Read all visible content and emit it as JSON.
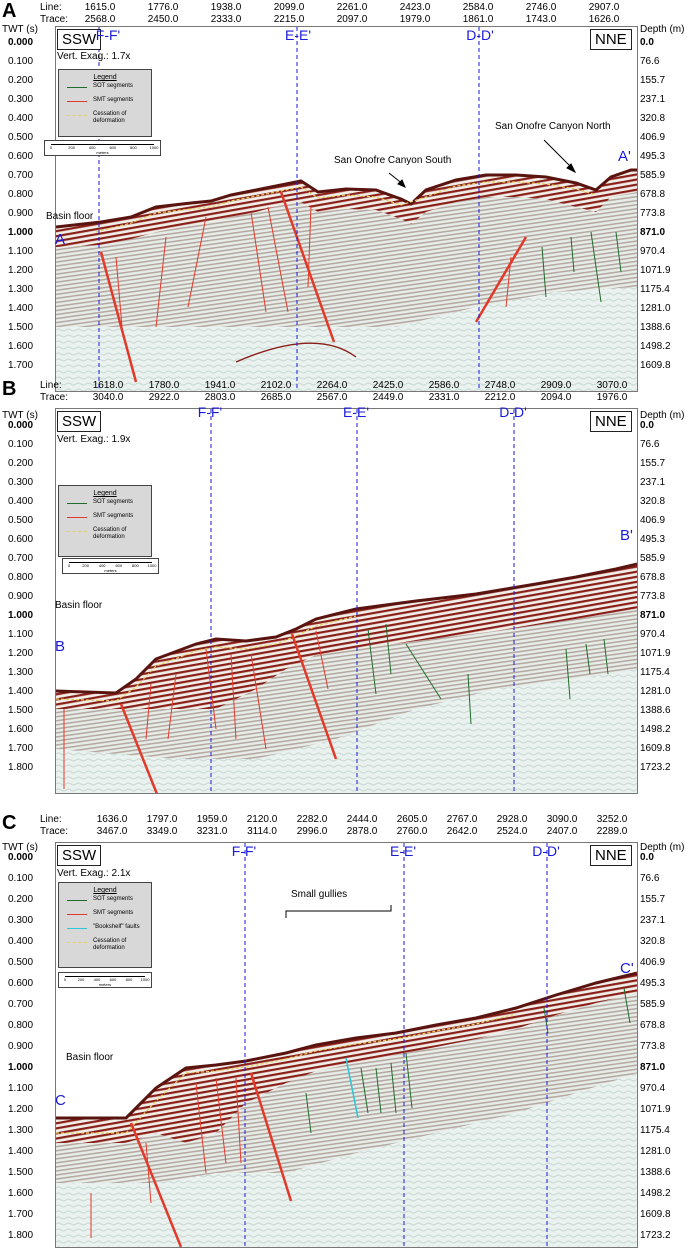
{
  "common": {
    "line_label": "Line:",
    "trace_label": "Trace:",
    "twt_title": "TWT (s)",
    "depth_title": "Depth (m)",
    "left_dir": "SSW",
    "right_dir": "NNE",
    "basin_floor": "Basin floor"
  },
  "colors": {
    "sot": "#1f6b2a",
    "smt": "#e23a2a",
    "cessation": "#e8d060",
    "bookshelf": "#2fc6d8",
    "xsection": "#1a1adb"
  },
  "panels": [
    {
      "letter": "A",
      "lines": [
        "1615.0",
        "1776.0",
        "1938.0",
        "2099.0",
        "2261.0",
        "2423.0",
        "2584.0",
        "2746.0",
        "2907.0"
      ],
      "traces": [
        "2568.0",
        "2450.0",
        "2333.0",
        "2215.0",
        "2097.0",
        "1979.0",
        "1861.0",
        "1743.0",
        "1626.0"
      ],
      "twt": [
        "0.000",
        "0.100",
        "0.200",
        "0.300",
        "0.400",
        "0.500",
        "0.600",
        "0.700",
        "0.800",
        "0.900",
        "1.000",
        "1.100",
        "1.200",
        "1.300",
        "1.400",
        "1.500",
        "1.600",
        "1.700"
      ],
      "depth": [
        "0.0",
        "76.6",
        "155.7",
        "237.1",
        "320.8",
        "406.9",
        "495.3",
        "585.9",
        "678.8",
        "773.8",
        "871.0",
        "970.4",
        "1071.9",
        "1175.4",
        "1281.0",
        "1388.6",
        "1498.2",
        "1609.8"
      ],
      "exag": "Vert. Exag.: 1.7x",
      "xsections": [
        "F-F'",
        "E-E'",
        "D-D'"
      ],
      "start": "A",
      "end": "A'",
      "annotations": [
        "San Onofre Canyon South",
        "San Onofre Canyon North"
      ],
      "legend": {
        "title": "Legend",
        "items": [
          "SOT segments",
          "SMT segments",
          "Cessation of deformation"
        ]
      },
      "scale": {
        "ticks": [
          "0",
          "200",
          "400",
          "600",
          "800",
          "1000"
        ],
        "unit": "meters"
      }
    },
    {
      "letter": "B",
      "lines": [
        "1618.0",
        "1780.0",
        "1941.0",
        "2102.0",
        "2264.0",
        "2425.0",
        "2586.0",
        "2748.0",
        "2909.0",
        "3070.0"
      ],
      "traces": [
        "3040.0",
        "2922.0",
        "2803.0",
        "2685.0",
        "2567.0",
        "2449.0",
        "2331.0",
        "2212.0",
        "2094.0",
        "1976.0"
      ],
      "twt": [
        "0.000",
        "0.100",
        "0.200",
        "0.300",
        "0.400",
        "0.500",
        "0.600",
        "0.700",
        "0.800",
        "0.900",
        "1.000",
        "1.100",
        "1.200",
        "1.300",
        "1.400",
        "1.500",
        "1.600",
        "1.700",
        "1.800"
      ],
      "depth": [
        "0.0",
        "76.6",
        "155.7",
        "237.1",
        "320.8",
        "406.9",
        "495.3",
        "585.9",
        "678.8",
        "773.8",
        "871.0",
        "970.4",
        "1071.9",
        "1175.4",
        "1281.0",
        "1388.6",
        "1498.2",
        "1609.8",
        "1723.2"
      ],
      "exag": "Vert. Exag.: 1.9x",
      "xsections": [
        "F-F'",
        "E-E'",
        "D-D'"
      ],
      "start": "B",
      "end": "B'",
      "annotations": [],
      "legend": {
        "title": "Legend",
        "items": [
          "SOT segments",
          "SMT segments",
          "Cessation of deformation"
        ]
      },
      "scale": {
        "ticks": [
          "0",
          "200",
          "400",
          "600",
          "800",
          "1000"
        ],
        "unit": "meters"
      }
    },
    {
      "letter": "C",
      "lines": [
        "1636.0",
        "1797.0",
        "1959.0",
        "2120.0",
        "2282.0",
        "2444.0",
        "2605.0",
        "2767.0",
        "2928.0",
        "3090.0",
        "3252.0"
      ],
      "traces": [
        "3467.0",
        "3349.0",
        "3231.0",
        "3114.0",
        "2996.0",
        "2878.0",
        "2760.0",
        "2642.0",
        "2524.0",
        "2407.0",
        "2289.0"
      ],
      "twt": [
        "0.000",
        "0.100",
        "0.200",
        "0.300",
        "0.400",
        "0.500",
        "0.600",
        "0.700",
        "0.800",
        "0.900",
        "1.000",
        "1.100",
        "1.200",
        "1.300",
        "1.400",
        "1.500",
        "1.600",
        "1.700",
        "1.800"
      ],
      "depth": [
        "0.0",
        "76.6",
        "155.7",
        "237.1",
        "320.8",
        "406.9",
        "495.3",
        "585.9",
        "678.8",
        "773.8",
        "871.0",
        "970.4",
        "1071.9",
        "1175.4",
        "1281.0",
        "1388.6",
        "1498.2",
        "1609.8",
        "1723.2"
      ],
      "exag": "Vert. Exag.: 2.1x",
      "xsections": [
        "F-F'",
        "E-E'",
        "D-D'"
      ],
      "start": "C",
      "end": "C'",
      "annotations": [
        "Small gullies"
      ],
      "legend": {
        "title": "Legend",
        "items": [
          "SOT segments",
          "SMT segments",
          "\"Bookshelf\" faults",
          "Cessation of deformation"
        ]
      },
      "scale": {
        "ticks": [
          "0",
          "200",
          "400",
          "600",
          "800",
          "1000"
        ],
        "unit": "meters"
      }
    }
  ]
}
